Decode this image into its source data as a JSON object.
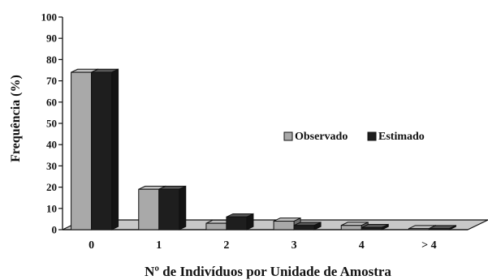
{
  "chart_data": {
    "type": "bar",
    "categories": [
      "0",
      "1",
      "2",
      "3",
      "4",
      "> 4"
    ],
    "series": [
      {
        "name": "Observado",
        "values": [
          74,
          19,
          3,
          4,
          2,
          0.5
        ],
        "color": "#a9a9a9"
      },
      {
        "name": "Estimado",
        "values": [
          74,
          19,
          6,
          2,
          1,
          0.5
        ],
        "color": "#1e1e1e"
      }
    ],
    "title": "",
    "xlabel": "Nº de Indivíduos por Unidade de Amostra",
    "ylabel": "Frequência (%)",
    "ylim": [
      0,
      100
    ],
    "yticks": [
      "0",
      "10",
      "20",
      "30",
      "40",
      "50",
      "60",
      "70",
      "80",
      "90",
      "100"
    ],
    "grid": false,
    "legend_position": "right",
    "style": "3d"
  }
}
